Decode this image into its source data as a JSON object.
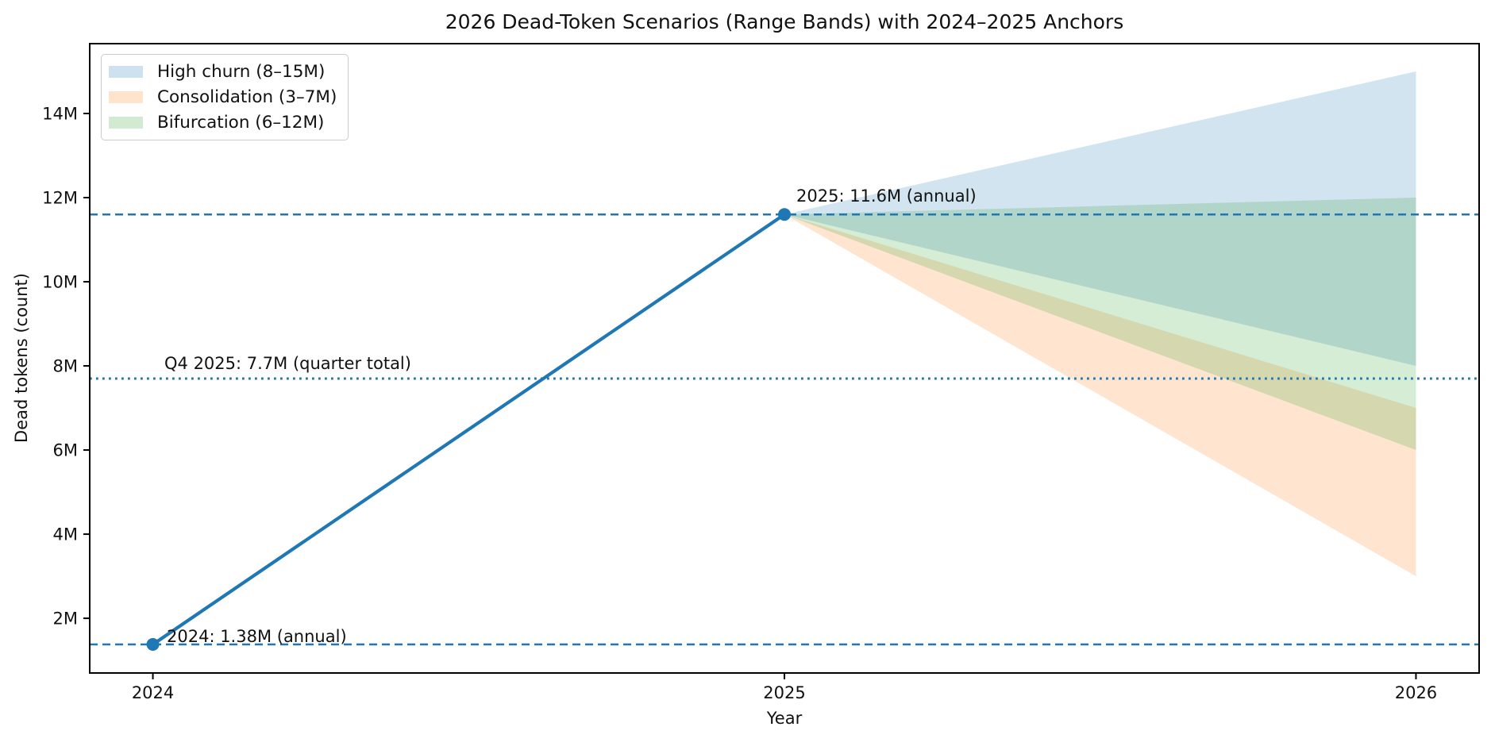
{
  "chart_data": {
    "type": "line",
    "title": "2026 Dead-Token Scenarios (Range Bands) with 2024–2025 Anchors",
    "xlabel": "Year",
    "ylabel": "Dead tokens (count)",
    "x_domain": [
      2023.9,
      2026.1
    ],
    "y_domain": [
      0.7,
      15.66
    ],
    "y_unit": "M",
    "x_ticks": [
      2024,
      2025,
      2026
    ],
    "x_tick_labels": [
      "2024",
      "2025",
      "2026"
    ],
    "y_ticks": [
      2,
      4,
      6,
      8,
      10,
      12,
      14
    ],
    "y_tick_labels": [
      "2M",
      "4M",
      "6M",
      "8M",
      "10M",
      "12M",
      "14M"
    ],
    "grid": false,
    "legend_position": "upper left",
    "anchor_series": {
      "name": "2024–2025 anchors",
      "x": [
        2024,
        2025
      ],
      "y": [
        1.38,
        11.6
      ],
      "color": "#1f77b4",
      "marker": "circle"
    },
    "bands": [
      {
        "label": "High churn (8–15M)",
        "color": "#1f77b4",
        "fill_alpha": 0.2,
        "apex": {
          "x": 2025,
          "y": 11.6
        },
        "end": {
          "x": 2026,
          "low": 8,
          "high": 15
        }
      },
      {
        "label": "Consolidation (3–7M)",
        "color": "#ff7f0e",
        "fill_alpha": 0.2,
        "apex": {
          "x": 2025,
          "y": 11.6
        },
        "end": {
          "x": 2026,
          "low": 3,
          "high": 7
        }
      },
      {
        "label": "Bifurcation (6–12M)",
        "color": "#2ca02c",
        "fill_alpha": 0.2,
        "apex": {
          "x": 2025,
          "y": 11.6
        },
        "end": {
          "x": 2026,
          "low": 6,
          "high": 12
        }
      }
    ],
    "reference_lines": [
      {
        "y": 11.6,
        "style": "dashed",
        "color": "#1f77b4",
        "label": "2025: 11.6M (annual)"
      },
      {
        "y": 7.7,
        "style": "dotted",
        "color": "#1f77b4",
        "label": "Q4 2025: 7.7M (quarter total)"
      },
      {
        "y": 1.38,
        "style": "dashed",
        "color": "#1f77b4",
        "label": "2024: 1.38M (annual)"
      }
    ],
    "annotations": [
      {
        "text": "2025: 11.6M (annual)",
        "at_x": 2025,
        "at_y": 11.6
      },
      {
        "text": "Q4 2025: 7.7M (quarter total)",
        "at_x": 2024.1,
        "at_y": 7.7
      },
      {
        "text": "2024: 1.38M (annual)",
        "at_x": 2024.02,
        "at_y": 1.38
      }
    ]
  }
}
